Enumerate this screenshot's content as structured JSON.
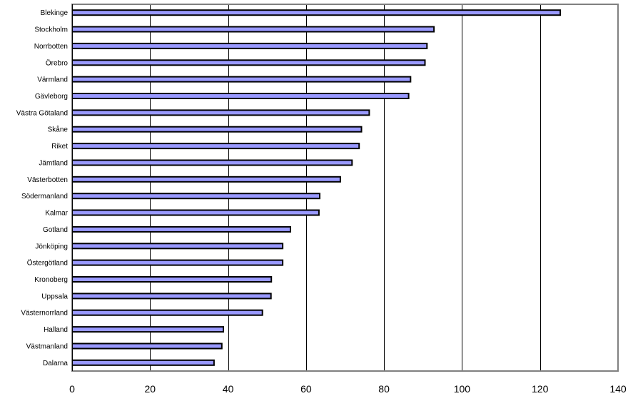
{
  "chart_data": {
    "type": "bar",
    "orientation": "horizontal",
    "categories": [
      "Blekinge",
      "Stockholm",
      "Norrbotten",
      "Örebro",
      "Värmland",
      "Gävleborg",
      "Västra Götaland",
      "Skåne",
      "Riket",
      "Jämtland",
      "Västerbotten",
      "Södermanland",
      "Kalmar",
      "Gotland",
      "Jönköping",
      "Östergötland",
      "Kronoberg",
      "Uppsala",
      "Västernorrland",
      "Halland",
      "Västmanland",
      "Dalarna"
    ],
    "values": [
      125.2,
      92.8,
      91.0,
      90.5,
      86.8,
      86.3,
      76.2,
      74.2,
      73.6,
      71.8,
      68.8,
      63.5,
      63.3,
      56.0,
      54.0,
      54.0,
      51.1,
      51.0,
      48.8,
      38.8,
      38.4,
      36.4
    ],
    "x_ticks": [
      "0",
      "20",
      "40",
      "60",
      "80",
      "100",
      "120",
      "140"
    ],
    "xlim": [
      0,
      140
    ],
    "grid": true,
    "colors": {
      "bar_fill": "#9999ff",
      "bar_stroke": "#000000",
      "grid": "#000000",
      "frame": "#808080"
    }
  }
}
